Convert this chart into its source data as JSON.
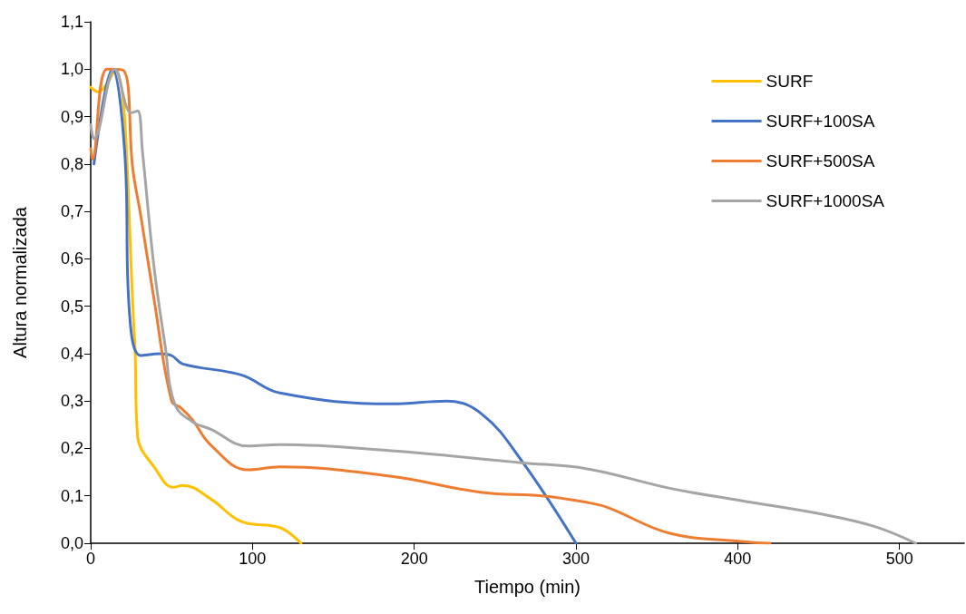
{
  "chart_data": {
    "type": "line",
    "xlabel": "Tiempo (min)",
    "ylabel": "Altura normalizada",
    "xlim": [
      0,
      540
    ],
    "xticks": [
      0,
      100,
      200,
      300,
      400,
      500
    ],
    "ylim": [
      0,
      1.1
    ],
    "yticks": [
      {
        "value": 0,
        "label": "0,0"
      },
      {
        "value": 0.1,
        "label": "0,1"
      },
      {
        "value": 0.2,
        "label": "0,2"
      },
      {
        "value": 0.3,
        "label": "0,3"
      },
      {
        "value": 0.4,
        "label": "0,4"
      },
      {
        "value": 0.5,
        "label": "0,5"
      },
      {
        "value": 0.6,
        "label": "0,6"
      },
      {
        "value": 0.7,
        "label": "0,7"
      },
      {
        "value": 0.8,
        "label": "0,8"
      },
      {
        "value": 0.9,
        "label": "0,9"
      },
      {
        "value": 1.0,
        "label": "1,0"
      },
      {
        "value": 1.1,
        "label": "1,1"
      }
    ],
    "grid": false,
    "legend": "top right",
    "marker": "none",
    "line_style": "solid",
    "series": [
      {
        "name": "SURF",
        "color": "#ffc000",
        "x": [
          0,
          4.5,
          15,
          27,
          29,
          40,
          51,
          57,
          74,
          93,
          117,
          130
        ],
        "values": [
          0.962,
          0.952,
          0.998,
          0.44,
          0.226,
          0.157,
          0.118,
          0.122,
          0.094,
          0.046,
          0.033,
          0
        ]
      },
      {
        "name": "SURF+100SA",
        "color": "#4472c4",
        "x": [
          2,
          13.4,
          21,
          24,
          31,
          43,
          50,
          57,
          93,
          117,
          186,
          220,
          242,
          266,
          300
        ],
        "values": [
          0.8,
          1.0,
          0.826,
          0.484,
          0.396,
          0.4,
          0.396,
          0.378,
          0.355,
          0.317,
          0.294,
          0.3,
          0.272,
          0.176,
          0
        ]
      },
      {
        "name": "SURF+500SA",
        "color": "#ed7d31",
        "x": [
          0,
          1,
          10,
          20,
          26,
          31,
          39,
          50,
          56,
          63,
          74,
          97,
          117,
          186,
          242,
          279,
          307,
          320,
          358,
          402,
          420
        ],
        "values": [
          0.832,
          0.81,
          1.0,
          0.998,
          0.79,
          0.69,
          0.518,
          0.3,
          0.285,
          0.26,
          0.208,
          0.155,
          0.161,
          0.141,
          0.107,
          0.1,
          0.086,
          0.075,
          0.021,
          0.004,
          0
        ]
      },
      {
        "name": "SURF+1000SA",
        "color": "#a5a5a5",
        "x": [
          0,
          2,
          15,
          25,
          29,
          32,
          39,
          46,
          52,
          63,
          74,
          97,
          117,
          186,
          266,
          307,
          358,
          402,
          451,
          484,
          510
        ],
        "values": [
          0.883,
          0.853,
          1.0,
          0.908,
          0.912,
          0.826,
          0.587,
          0.417,
          0.293,
          0.256,
          0.241,
          0.205,
          0.208,
          0.195,
          0.17,
          0.157,
          0.116,
          0.09,
          0.062,
          0.036,
          0
        ]
      }
    ]
  }
}
